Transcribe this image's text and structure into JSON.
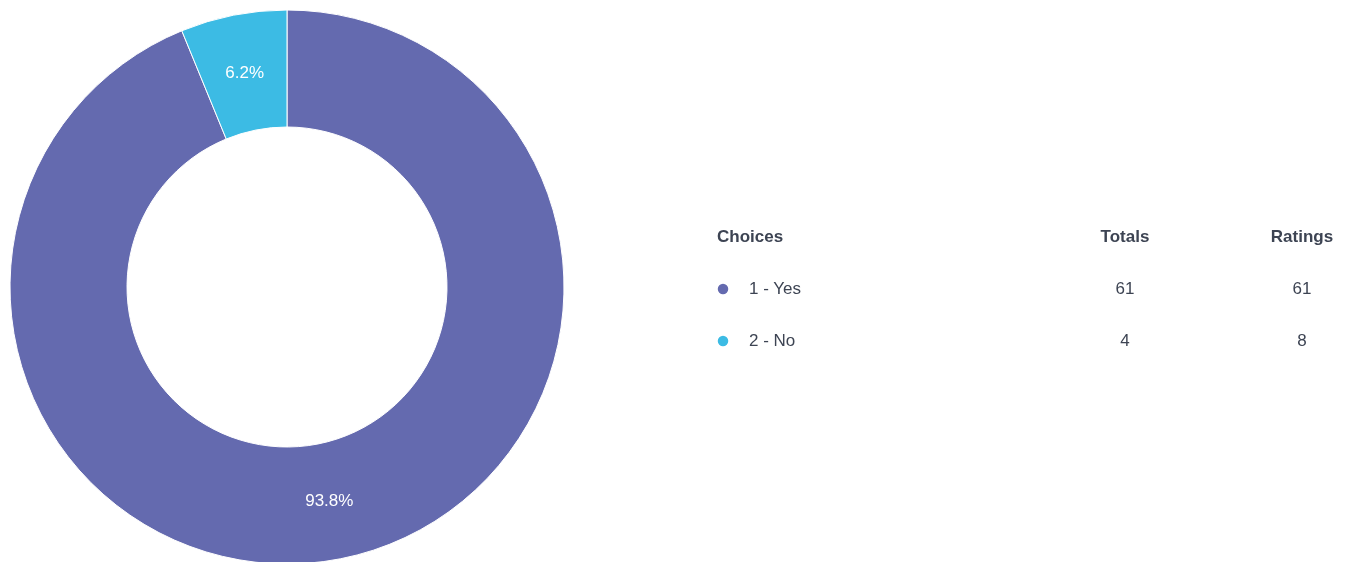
{
  "chart_data": {
    "type": "donut",
    "categories": [
      "1 - Yes",
      "2 - No"
    ],
    "values": [
      93.8,
      6.2
    ],
    "colors": [
      "#646aaf",
      "#3cbbe4"
    ],
    "value_labels": [
      "93.8%",
      "6.2%"
    ],
    "legend_title": "Choices",
    "legend": "right",
    "annotations": [
      "Totals",
      "Ratings",
      "61",
      "61",
      "4",
      "8"
    ]
  }
}
